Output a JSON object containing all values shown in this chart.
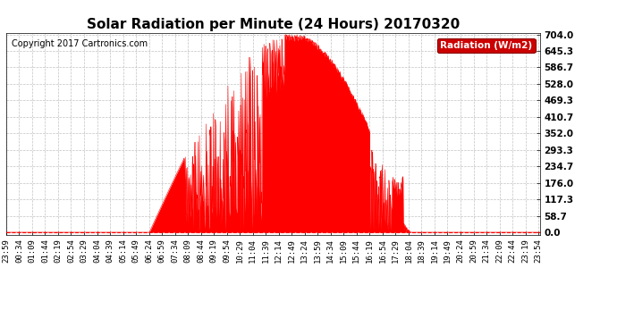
{
  "title": "Solar Radiation per Minute (24 Hours) 20170320",
  "copyright": "Copyright 2017 Cartronics.com",
  "legend_label": "Radiation (W/m2)",
  "yticks": [
    0.0,
    58.7,
    117.3,
    176.0,
    234.7,
    293.3,
    352.0,
    410.7,
    469.3,
    528.0,
    586.7,
    645.3,
    704.0
  ],
  "ymax": 704.0,
  "fill_color": "#FF0000",
  "line_color": "#FF0000",
  "background_color": "#FFFFFF",
  "grid_color": "#BBBBBB",
  "title_fontsize": 11,
  "copyright_fontsize": 7,
  "tick_label_fontsize": 6.5,
  "ytick_fontsize": 7.5,
  "legend_bg": "#CC0000",
  "legend_text_color": "#FFFFFF"
}
